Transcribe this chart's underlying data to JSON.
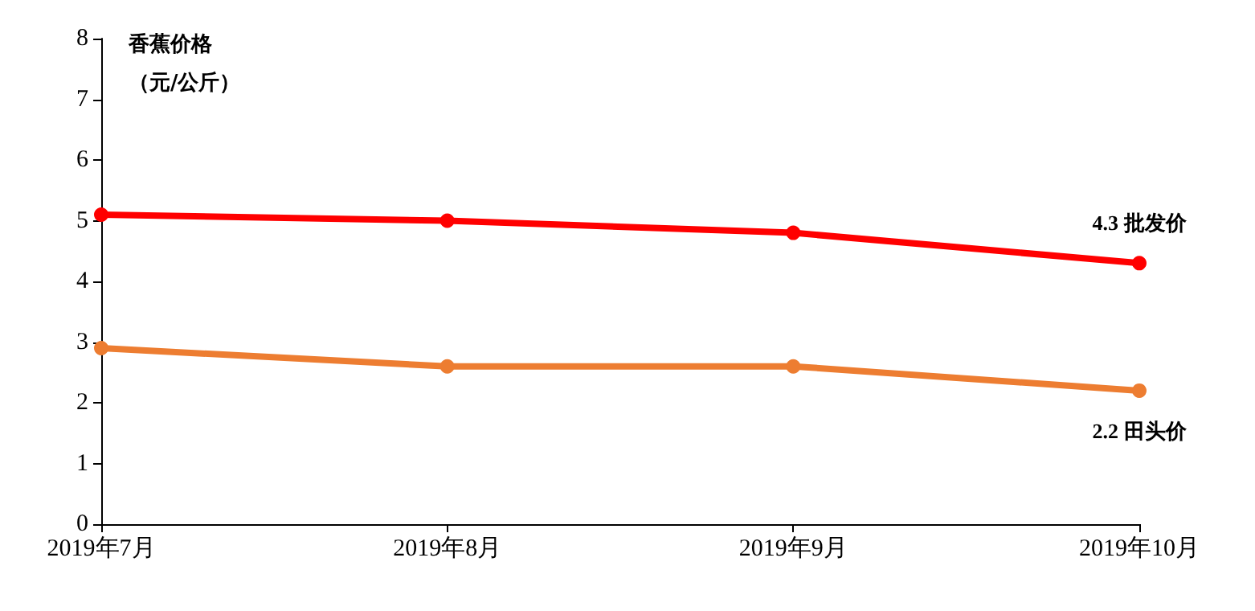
{
  "chart_data": {
    "type": "line",
    "ylabel": "香蕉价格（元/公斤）",
    "categories": [
      "2019年7月",
      "2019年8月",
      "2019年9月",
      "2019年10月"
    ],
    "series": [
      {
        "name": "批发价",
        "color": "#ff0000",
        "values": [
          5.1,
          5.0,
          4.8,
          4.3
        ],
        "value_labels": [
          null,
          null,
          null,
          "4.3"
        ]
      },
      {
        "name": "田头价",
        "color": "#ed7d31",
        "values": [
          2.9,
          2.6,
          2.6,
          2.2
        ],
        "value_labels": [
          null,
          null,
          null,
          "2.2"
        ]
      }
    ],
    "ylim": [
      0,
      8
    ],
    "yticks": [
      0,
      1,
      2,
      3,
      4,
      5,
      6,
      7,
      8
    ],
    "grid": false,
    "legend": false,
    "marker": "circle",
    "line_style": "solid"
  }
}
